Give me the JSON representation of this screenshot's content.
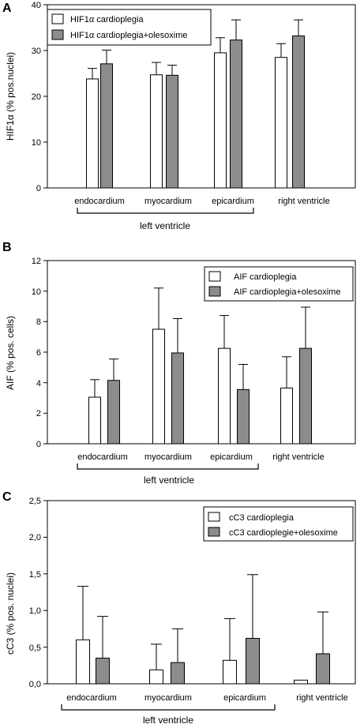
{
  "colors": {
    "bar_a": "#ffffff",
    "bar_b": "#8c8c8c",
    "stroke": "#000000"
  },
  "chart_data": [
    {
      "type": "bar",
      "panel": "A",
      "ylabel": "HIF1α (% pos.nuclei)",
      "ylim": [
        0,
        40
      ],
      "yticks": [
        "0",
        "10",
        "20",
        "30",
        "40"
      ],
      "categories": [
        "endocardium",
        "myocardium",
        "epicardium",
        "right ventricle"
      ],
      "group_label": "left ventricle",
      "legend_position": "top-left",
      "series": [
        {
          "name": "HIF1α  cardioplegia",
          "values": [
            23.8,
            24.7,
            29.5,
            28.5
          ],
          "errors": [
            2.3,
            2.7,
            3.3,
            3.0
          ]
        },
        {
          "name": "HIF1α  cardioplegia+olesoxime",
          "values": [
            27.1,
            24.6,
            32.3,
            33.2
          ],
          "errors": [
            3.0,
            2.2,
            4.4,
            3.5
          ]
        }
      ]
    },
    {
      "type": "bar",
      "panel": "B",
      "ylabel": "AIF (% pos. cells)",
      "ylim": [
        0,
        12
      ],
      "yticks": [
        "0",
        "2",
        "4",
        "6",
        "8",
        "10",
        "12"
      ],
      "categories": [
        "endocardium",
        "myocardium",
        "epicardium",
        "right ventricle"
      ],
      "group_label": "left ventricle",
      "legend_position": "top-right",
      "series": [
        {
          "name": "AIF cardioplegia",
          "values": [
            3.05,
            7.5,
            6.25,
            3.65
          ],
          "errors": [
            1.15,
            2.7,
            2.15,
            2.05
          ]
        },
        {
          "name": "AIF cardioplegia+olesoxime",
          "values": [
            4.15,
            5.95,
            3.55,
            6.25
          ],
          "errors": [
            1.4,
            2.25,
            1.65,
            2.7
          ]
        }
      ]
    },
    {
      "type": "bar",
      "panel": "C",
      "ylabel": "cC3 (% pos. nuclei)",
      "ylim": [
        0,
        2.5
      ],
      "yticks": [
        "0,0",
        "0,5",
        "1,0",
        "1,5",
        "2,0",
        "2,5"
      ],
      "categories": [
        "endocardium",
        "myocardium",
        "epicardium",
        "right ventricle"
      ],
      "group_label": "left ventricle",
      "legend_position": "top-right",
      "series": [
        {
          "name": "cC3 cardioplegia",
          "values": [
            0.6,
            0.19,
            0.32,
            0.05
          ],
          "errors": [
            0.73,
            0.35,
            0.57,
            0.0
          ]
        },
        {
          "name": "cC3 cardioplegie+olesoxime",
          "values": [
            0.35,
            0.29,
            0.62,
            0.41
          ],
          "errors": [
            0.57,
            0.46,
            0.87,
            0.57
          ]
        }
      ]
    }
  ]
}
